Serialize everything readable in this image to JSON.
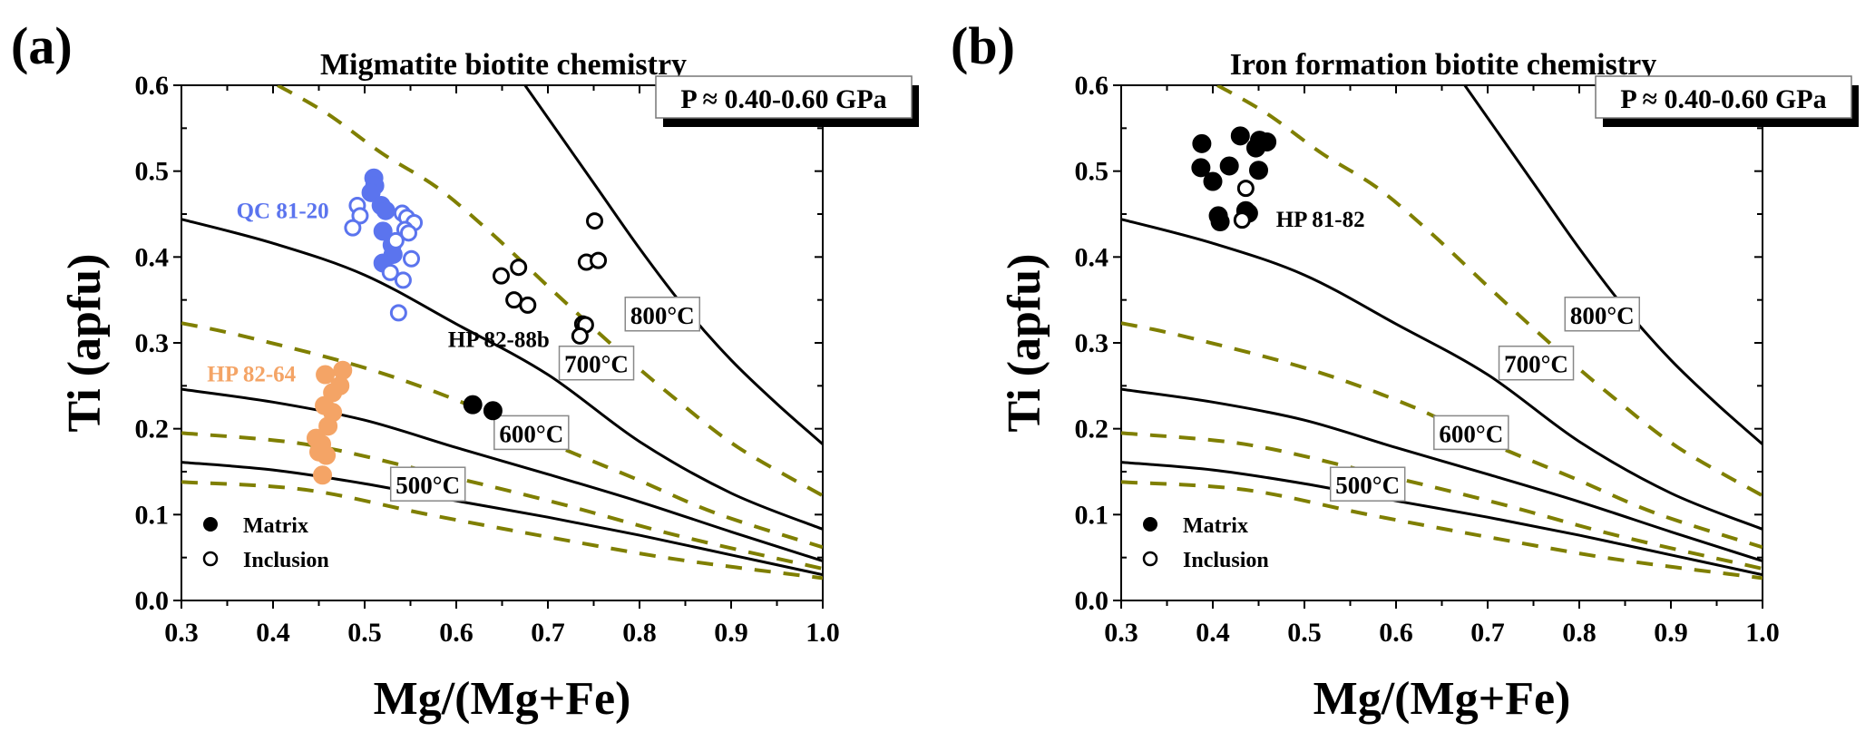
{
  "colors": {
    "qc": "#5B74EE",
    "hp8264": "#F4A466",
    "black": "#000000",
    "dashed": "#7F7F00"
  },
  "chart_data": [
    {
      "type": "scatter",
      "panel_label": "(a)",
      "title": "Migmatite biotite chemistry",
      "xlabel": "Mg/(Mg+Fe)",
      "ylabel": "Ti (apfu)",
      "xlim": [
        0.3,
        1.0
      ],
      "ylim": [
        0.0,
        0.6
      ],
      "xticks": [
        "0.3",
        "0.4",
        "0.5",
        "0.6",
        "0.7",
        "0.8",
        "0.9",
        "1.0"
      ],
      "yticks": [
        "0.0",
        "0.1",
        "0.2",
        "0.3",
        "0.4",
        "0.5",
        "0.6"
      ],
      "pressure_label": "P ≈ 0.40-0.60 GPa",
      "legend": {
        "position": "bottom-left",
        "entries": [
          {
            "label": "Matrix",
            "marker": "filled-circle"
          },
          {
            "label": "Inclusion",
            "marker": "open-circle"
          }
        ]
      },
      "isotherms": [
        {
          "label": "500°C",
          "style": "solid",
          "label_at": [
            0.569,
            0.135
          ],
          "points": [
            [
              0.3,
              0.161
            ],
            [
              0.4,
              0.152
            ],
            [
              0.5,
              0.136
            ],
            [
              0.6,
              0.116
            ],
            [
              0.7,
              0.097
            ],
            [
              0.8,
              0.076
            ],
            [
              0.9,
              0.053
            ],
            [
              1.0,
              0.03
            ]
          ]
        },
        {
          "label": "600°C",
          "style": "solid",
          "label_at": [
            0.682,
            0.195
          ],
          "points": [
            [
              0.3,
              0.246
            ],
            [
              0.4,
              0.231
            ],
            [
              0.5,
              0.21
            ],
            [
              0.6,
              0.178
            ],
            [
              0.7,
              0.147
            ],
            [
              0.8,
              0.115
            ],
            [
              0.9,
              0.08
            ],
            [
              1.0,
              0.046
            ]
          ]
        },
        {
          "label": "700°C",
          "style": "solid",
          "label_at": [
            0.753,
            0.276
          ],
          "points": [
            [
              0.3,
              0.444
            ],
            [
              0.4,
              0.416
            ],
            [
              0.5,
              0.379
            ],
            [
              0.6,
              0.322
            ],
            [
              0.7,
              0.263
            ],
            [
              0.8,
              0.185
            ],
            [
              0.9,
              0.125
            ],
            [
              1.0,
              0.083
            ]
          ]
        },
        {
          "label": "800°C",
          "style": "solid",
          "label_at": [
            0.825,
            0.333
          ],
          "points": [
            [
              0.675,
              0.6
            ],
            [
              0.75,
              0.486
            ],
            [
              0.8,
              0.41
            ],
            [
              0.85,
              0.34
            ],
            [
              0.9,
              0.28
            ],
            [
              0.95,
              0.229
            ],
            [
              1.0,
              0.182
            ]
          ]
        },
        {
          "label": "",
          "style": "dashed",
          "points": [
            [
              0.3,
              0.138
            ],
            [
              0.435,
              0.129
            ],
            [
              0.57,
              0.1
            ],
            [
              0.705,
              0.073
            ],
            [
              0.84,
              0.048
            ],
            [
              1.0,
              0.026
            ]
          ]
        },
        {
          "label": "",
          "style": "dashed",
          "points": [
            [
              0.3,
              0.195
            ],
            [
              0.435,
              0.182
            ],
            [
              0.57,
              0.15
            ],
            [
              0.705,
              0.115
            ],
            [
              0.84,
              0.076
            ],
            [
              1.0,
              0.037
            ]
          ]
        },
        {
          "label": "",
          "style": "dashed",
          "points": [
            [
              0.3,
              0.323
            ],
            [
              0.367,
              0.308
            ],
            [
              0.503,
              0.27
            ],
            [
              0.615,
              0.227
            ],
            [
              0.705,
              0.182
            ],
            [
              0.795,
              0.142
            ],
            [
              0.885,
              0.101
            ],
            [
              1.0,
              0.062
            ]
          ]
        },
        {
          "label": "",
          "style": "dashed",
          "points": [
            [
              0.405,
              0.6
            ],
            [
              0.459,
              0.567
            ],
            [
              0.52,
              0.52
            ],
            [
              0.579,
              0.481
            ],
            [
              0.638,
              0.428
            ],
            [
              0.705,
              0.361
            ],
            [
              0.777,
              0.291
            ],
            [
              0.84,
              0.234
            ],
            [
              0.908,
              0.178
            ],
            [
              1.0,
              0.122
            ]
          ]
        }
      ],
      "series": [
        {
          "name": "QC 81-20",
          "kind": "Matrix",
          "color": "#5B74EE",
          "filled": true,
          "points": [
            [
              0.51,
              0.492
            ],
            [
              0.511,
              0.483
            ],
            [
              0.507,
              0.475
            ],
            [
              0.518,
              0.46
            ],
            [
              0.523,
              0.454
            ],
            [
              0.52,
              0.43
            ],
            [
              0.53,
              0.414
            ],
            [
              0.531,
              0.403
            ],
            [
              0.52,
              0.393
            ]
          ]
        },
        {
          "name": "QC 81-20",
          "kind": "Inclusion",
          "color": "#5B74EE",
          "filled": false,
          "points": [
            [
              0.492,
              0.46
            ],
            [
              0.495,
              0.448
            ],
            [
              0.487,
              0.434
            ],
            [
              0.541,
              0.451
            ],
            [
              0.546,
              0.446
            ],
            [
              0.554,
              0.44
            ],
            [
              0.544,
              0.432
            ],
            [
              0.548,
              0.428
            ],
            [
              0.534,
              0.419
            ],
            [
              0.551,
              0.398
            ],
            [
              0.528,
              0.382
            ],
            [
              0.542,
              0.373
            ],
            [
              0.537,
              0.335
            ]
          ]
        },
        {
          "name": "HP 82-88b",
          "kind": "Matrix",
          "color": "#000000",
          "filled": true,
          "points": [
            [
              0.618,
              0.228
            ],
            [
              0.64,
              0.221
            ]
          ]
        },
        {
          "name": "HP 82-88b",
          "kind": "Inclusion",
          "color": "#000000",
          "filled": false,
          "points": [
            [
              0.751,
              0.442
            ],
            [
              0.742,
              0.394
            ],
            [
              0.755,
              0.396
            ],
            [
              0.649,
              0.378
            ],
            [
              0.668,
              0.388
            ],
            [
              0.663,
              0.35
            ],
            [
              0.678,
              0.344
            ],
            [
              0.738,
              0.322
            ],
            [
              0.741,
              0.321
            ],
            [
              0.735,
              0.308
            ]
          ]
        },
        {
          "name": "HP 82-64",
          "kind": "Matrix",
          "color": "#F4A466",
          "filled": true,
          "points": [
            [
              0.457,
              0.263
            ],
            [
              0.476,
              0.268
            ],
            [
              0.473,
              0.25
            ],
            [
              0.465,
              0.242
            ],
            [
              0.456,
              0.227
            ],
            [
              0.465,
              0.219
            ],
            [
              0.46,
              0.203
            ],
            [
              0.447,
              0.189
            ],
            [
              0.453,
              0.182
            ],
            [
              0.458,
              0.169
            ],
            [
              0.45,
              0.173
            ],
            [
              0.454,
              0.146
            ]
          ]
        }
      ],
      "sample_labels": [
        {
          "text": "QC 81-20",
          "color": "#5B74EE",
          "at": [
            0.36,
            0.445
          ]
        },
        {
          "text": "HP 82-88b",
          "color": "#000000",
          "at": [
            0.591,
            0.295
          ]
        },
        {
          "text": "HP 82-64",
          "color": "#F4A466",
          "at": [
            0.328,
            0.255
          ]
        }
      ]
    },
    {
      "type": "scatter",
      "panel_label": "(b)",
      "title": "Iron formation biotite chemistry",
      "xlabel": "Mg/(Mg+Fe)",
      "ylabel": "Ti (apfu)",
      "xlim": [
        0.3,
        1.0
      ],
      "ylim": [
        0.0,
        0.6
      ],
      "xticks": [
        "0.3",
        "0.4",
        "0.5",
        "0.6",
        "0.7",
        "0.8",
        "0.9",
        "1.0"
      ],
      "yticks": [
        "0.0",
        "0.1",
        "0.2",
        "0.3",
        "0.4",
        "0.5",
        "0.6"
      ],
      "pressure_label": "P ≈ 0.40-0.60 GPa",
      "legend": {
        "position": "bottom-left",
        "entries": [
          {
            "label": "Matrix",
            "marker": "filled-circle"
          },
          {
            "label": "Inclusion",
            "marker": "open-circle"
          }
        ]
      },
      "isotherms": [
        {
          "label": "500°C",
          "style": "solid",
          "label_at": [
            0.569,
            0.135
          ],
          "points": [
            [
              0.3,
              0.161
            ],
            [
              0.4,
              0.152
            ],
            [
              0.5,
              0.136
            ],
            [
              0.6,
              0.116
            ],
            [
              0.7,
              0.097
            ],
            [
              0.8,
              0.076
            ],
            [
              0.9,
              0.053
            ],
            [
              1.0,
              0.03
            ]
          ]
        },
        {
          "label": "600°C",
          "style": "solid",
          "label_at": [
            0.682,
            0.195
          ],
          "points": [
            [
              0.3,
              0.246
            ],
            [
              0.4,
              0.231
            ],
            [
              0.5,
              0.21
            ],
            [
              0.6,
              0.178
            ],
            [
              0.7,
              0.147
            ],
            [
              0.8,
              0.115
            ],
            [
              0.9,
              0.08
            ],
            [
              1.0,
              0.046
            ]
          ]
        },
        {
          "label": "700°C",
          "style": "solid",
          "label_at": [
            0.753,
            0.276
          ],
          "points": [
            [
              0.3,
              0.444
            ],
            [
              0.4,
              0.416
            ],
            [
              0.5,
              0.379
            ],
            [
              0.6,
              0.322
            ],
            [
              0.7,
              0.263
            ],
            [
              0.8,
              0.185
            ],
            [
              0.9,
              0.125
            ],
            [
              1.0,
              0.083
            ]
          ]
        },
        {
          "label": "800°C",
          "style": "solid",
          "label_at": [
            0.825,
            0.333
          ],
          "points": [
            [
              0.675,
              0.6
            ],
            [
              0.75,
              0.486
            ],
            [
              0.8,
              0.41
            ],
            [
              0.85,
              0.34
            ],
            [
              0.9,
              0.28
            ],
            [
              0.95,
              0.229
            ],
            [
              1.0,
              0.182
            ]
          ]
        },
        {
          "label": "",
          "style": "dashed",
          "points": [
            [
              0.3,
              0.138
            ],
            [
              0.435,
              0.129
            ],
            [
              0.57,
              0.1
            ],
            [
              0.705,
              0.073
            ],
            [
              0.84,
              0.048
            ],
            [
              1.0,
              0.026
            ]
          ]
        },
        {
          "label": "",
          "style": "dashed",
          "points": [
            [
              0.3,
              0.195
            ],
            [
              0.435,
              0.182
            ],
            [
              0.57,
              0.15
            ],
            [
              0.705,
              0.115
            ],
            [
              0.84,
              0.076
            ],
            [
              1.0,
              0.037
            ]
          ]
        },
        {
          "label": "",
          "style": "dashed",
          "points": [
            [
              0.3,
              0.323
            ],
            [
              0.367,
              0.308
            ],
            [
              0.503,
              0.27
            ],
            [
              0.615,
              0.227
            ],
            [
              0.705,
              0.182
            ],
            [
              0.795,
              0.142
            ],
            [
              0.885,
              0.101
            ],
            [
              1.0,
              0.062
            ]
          ]
        },
        {
          "label": "",
          "style": "dashed",
          "points": [
            [
              0.405,
              0.6
            ],
            [
              0.459,
              0.567
            ],
            [
              0.52,
              0.52
            ],
            [
              0.579,
              0.481
            ],
            [
              0.638,
              0.428
            ],
            [
              0.705,
              0.361
            ],
            [
              0.777,
              0.291
            ],
            [
              0.84,
              0.234
            ],
            [
              0.908,
              0.178
            ],
            [
              1.0,
              0.122
            ]
          ]
        }
      ],
      "series": [
        {
          "name": "HP 81-82",
          "kind": "Matrix",
          "color": "#000000",
          "filled": true,
          "points": [
            [
              0.388,
              0.532
            ],
            [
              0.43,
              0.541
            ],
            [
              0.451,
              0.536
            ],
            [
              0.459,
              0.534
            ],
            [
              0.447,
              0.527
            ],
            [
              0.387,
              0.504
            ],
            [
              0.4,
              0.488
            ],
            [
              0.418,
              0.506
            ],
            [
              0.45,
              0.501
            ],
            [
              0.406,
              0.448
            ],
            [
              0.408,
              0.441
            ],
            [
              0.436,
              0.454
            ],
            [
              0.439,
              0.451
            ]
          ]
        },
        {
          "name": "HP 81-82",
          "kind": "Inclusion",
          "color": "#000000",
          "filled": false,
          "points": [
            [
              0.436,
              0.48
            ],
            [
              0.432,
              0.443
            ]
          ]
        }
      ],
      "sample_labels": [
        {
          "text": "HP 81-82",
          "color": "#000000",
          "at": [
            0.469,
            0.435
          ]
        }
      ]
    }
  ]
}
